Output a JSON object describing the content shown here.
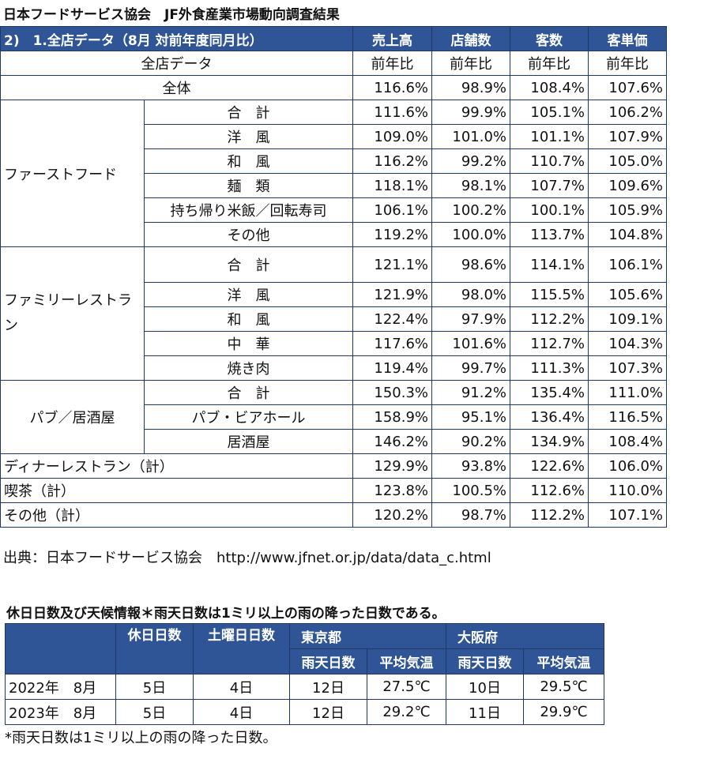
{
  "title1": "日本フードサービス協会　JF外食産業市場動向調査結果",
  "table1": {
    "header_title": "2)　1.全店データ（8月 対前年度同月比）",
    "columns": [
      "売上高",
      "店舗数",
      "客数",
      "客単価"
    ],
    "subheader": {
      "label": "全店データ",
      "cells": [
        "前年比",
        "前年比",
        "前年比",
        "前年比"
      ]
    },
    "all": {
      "label": "全体",
      "values": [
        "116.6%",
        "98.9%",
        "108.4%",
        "107.6%"
      ]
    },
    "groups": [
      {
        "name": "ファーストフード",
        "rows": [
          {
            "label": "合　計",
            "values": [
              "111.6%",
              "99.9%",
              "105.1%",
              "106.2%"
            ]
          },
          {
            "label": "洋　風",
            "values": [
              "109.0%",
              "101.0%",
              "101.1%",
              "107.9%"
            ]
          },
          {
            "label": "和　風",
            "values": [
              "116.2%",
              "99.2%",
              "110.7%",
              "105.0%"
            ]
          },
          {
            "label": "麺　類",
            "values": [
              "118.1%",
              "98.1%",
              "107.7%",
              "109.6%"
            ]
          },
          {
            "label": "持ち帰り米飯／回転寿司",
            "values": [
              "106.1%",
              "100.2%",
              "100.1%",
              "105.9%"
            ]
          },
          {
            "label": "その他",
            "values": [
              "119.2%",
              "100.0%",
              "113.7%",
              "104.8%"
            ]
          }
        ]
      },
      {
        "name": "ファミリーレストラン",
        "rows": [
          {
            "label": "合　計",
            "values": [
              "121.1%",
              "98.6%",
              "114.1%",
              "106.1%"
            ]
          },
          {
            "label": "洋　風",
            "values": [
              "121.9%",
              "98.0%",
              "115.5%",
              "105.6%"
            ]
          },
          {
            "label": "和　風",
            "values": [
              "122.4%",
              "97.9%",
              "112.2%",
              "109.1%"
            ]
          },
          {
            "label": "中　華",
            "values": [
              "117.6%",
              "101.6%",
              "112.7%",
              "104.3%"
            ]
          },
          {
            "label": "焼き肉",
            "values": [
              "119.4%",
              "99.7%",
              "111.3%",
              "107.3%"
            ]
          }
        ]
      },
      {
        "name": "パブ／居酒屋",
        "rows": [
          {
            "label": "合　計",
            "values": [
              "150.3%",
              "91.2%",
              "135.4%",
              "111.0%"
            ]
          },
          {
            "label": "パブ・ビアホール",
            "values": [
              "158.9%",
              "95.1%",
              "136.4%",
              "116.5%"
            ]
          },
          {
            "label": "居酒屋",
            "values": [
              "146.2%",
              "90.2%",
              "134.9%",
              "108.4%"
            ]
          }
        ]
      }
    ],
    "singles": [
      {
        "label": "ディナーレストラン（計）",
        "values": [
          "129.9%",
          "93.8%",
          "122.6%",
          "106.0%"
        ]
      },
      {
        "label": "喫茶（計）",
        "values": [
          "123.8%",
          "100.5%",
          "112.6%",
          "110.0%"
        ]
      },
      {
        "label": "その他（計）",
        "values": [
          "120.2%",
          "98.7%",
          "112.2%",
          "107.1%"
        ]
      }
    ]
  },
  "source_text": "出典：日本フードサービス協会　http://www.jfnet.or.jp/data/data_c.html",
  "title2": "休日日数及び天候情報＊雨天日数は1ミリ以上の雨の降った日数である。",
  "table2": {
    "headers": {
      "holidays": "休日日数",
      "saturdays": "土曜日日数",
      "tokyo": "東京都",
      "osaka": "大阪府",
      "rain_days": "雨天日数",
      "avg_temp": "平均気温"
    },
    "rows": [
      {
        "year": "2022年　8月",
        "holidays": "5日",
        "saturdays": "4日",
        "tokyo_rain": "12日",
        "tokyo_temp": "27.5℃",
        "osaka_rain": "10日",
        "osaka_temp": "29.5℃"
      },
      {
        "year": "2023年　8月",
        "holidays": "5日",
        "saturdays": "4日",
        "tokyo_rain": "12日",
        "tokyo_temp": "29.2℃",
        "osaka_rain": "11日",
        "osaka_temp": "29.9℃"
      }
    ]
  },
  "note": "*雨天日数は1ミリ以上の雨の降った日数。"
}
